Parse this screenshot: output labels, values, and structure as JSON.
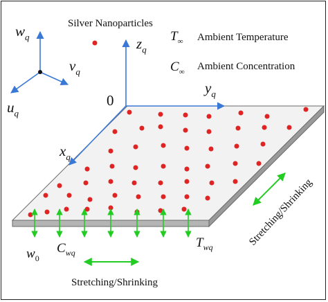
{
  "legend": {
    "particles_label": "Silver Nanoparticles",
    "t_inf_symbol": "T",
    "t_inf_sub": "∞",
    "t_inf_label": "Ambient Temperature",
    "c_inf_symbol": "C",
    "c_inf_sub": "∞",
    "c_inf_label": "Ambient Concentration"
  },
  "axes": {
    "w": "w",
    "w_sub": "q",
    "v": "v",
    "v_sub": "q",
    "u": "u",
    "u_sub": "q",
    "z": "z",
    "z_sub": "q",
    "y": "y",
    "y_sub": "q",
    "x": "x",
    "x_sub": "q",
    "origin": "0"
  },
  "surface": {
    "w0": "w",
    "w0_sub": "0",
    "cwq": "C",
    "cwq_sub": "wq",
    "twq": "T",
    "twq_sub": "wq",
    "bottom_label": "Stretching/Shrinking",
    "side_label": "Stretching/Shrinking"
  },
  "colors": {
    "axis": "#3a78d6",
    "particle": "#e02424",
    "arrow": "#22cc22",
    "sheet_top": "#f2f2f2",
    "sheet_edge": "#9a9a9a"
  }
}
